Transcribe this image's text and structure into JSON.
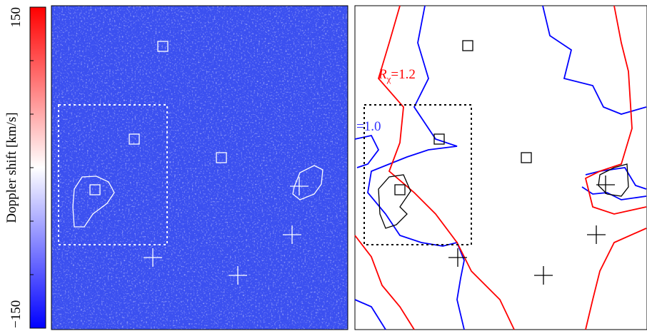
{
  "colorbar": {
    "label": "Doppler shift  [km/s]",
    "lim": [
      -150,
      150
    ],
    "ticks": [
      {
        "value": -150,
        "label": "−150"
      },
      150
    ]
  },
  "annotations": {
    "r_symbol": "R",
    "r_subscript": "χ",
    "r_value": "=1.2",
    "blue_value": "=1.0"
  }
}
